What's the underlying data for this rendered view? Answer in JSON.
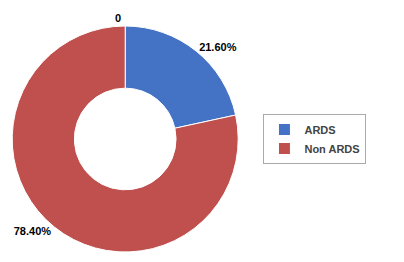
{
  "chart_data": {
    "type": "pie",
    "categories": [
      "ARDS",
      "Non ARDS"
    ],
    "values": [
      21.6,
      78.4
    ],
    "value_labels": [
      "21.60%",
      "78.40%"
    ],
    "colors": [
      "#4472C4",
      "#C0504D"
    ],
    "data_labels": true,
    "annotations": [
      "0"
    ],
    "legend": "right"
  }
}
